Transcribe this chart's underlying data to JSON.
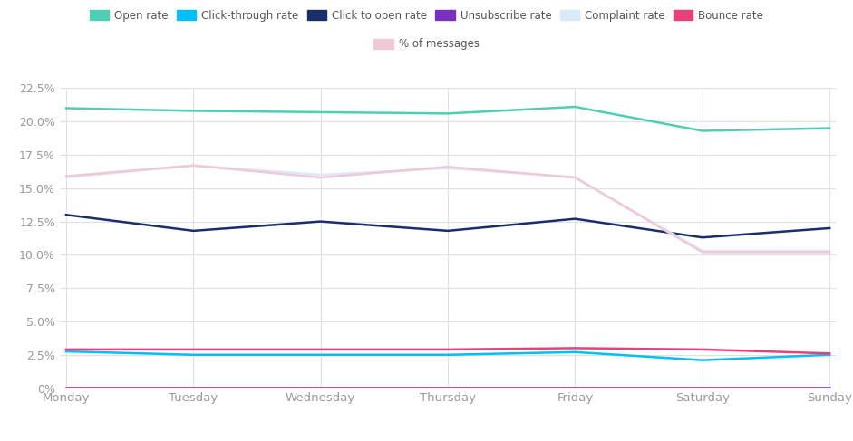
{
  "days": [
    "Monday",
    "Tuesday",
    "Wednesday",
    "Thursday",
    "Friday",
    "Saturday",
    "Sunday"
  ],
  "open_rate": [
    0.21,
    0.208,
    0.207,
    0.206,
    0.211,
    0.193,
    0.195
  ],
  "click_through_rate": [
    0.0275,
    0.025,
    0.025,
    0.025,
    0.027,
    0.021,
    0.025
  ],
  "click_to_open_rate": [
    0.13,
    0.118,
    0.125,
    0.118,
    0.127,
    0.113,
    0.12
  ],
  "unsubscribe_rate": [
    0.0005,
    0.0005,
    0.0005,
    0.0005,
    0.0005,
    0.0005,
    0.0005
  ],
  "complaint_rate": [
    0.158,
    0.167,
    0.16,
    0.165,
    0.158,
    0.103,
    0.103
  ],
  "bounce_rate": [
    0.029,
    0.029,
    0.029,
    0.029,
    0.03,
    0.029,
    0.026
  ],
  "pct_messages": [
    0.159,
    0.167,
    0.158,
    0.166,
    0.158,
    0.102,
    0.102
  ],
  "colors": {
    "open_rate": "#4ECFB5",
    "click_through_rate": "#00BFFF",
    "click_to_open_rate": "#1A2E6C",
    "unsubscribe_rate": "#7B2FBE",
    "complaint_rate": "#D8EAF8",
    "bounce_rate": "#E8407A",
    "pct_messages": "#F0C8D8"
  },
  "ylim": [
    0,
    0.225
  ],
  "yticks": [
    0,
    0.025,
    0.05,
    0.075,
    0.1,
    0.125,
    0.15,
    0.175,
    0.2,
    0.225
  ],
  "background_color": "#FFFFFF",
  "grid_color": "#E0E0E0",
  "legend_row1": [
    "Open rate",
    "Click-through rate",
    "Click to open rate",
    "Unsubscribe rate",
    "Complaint rate",
    "Bounce rate"
  ],
  "legend_row2": [
    "% of messages"
  ]
}
